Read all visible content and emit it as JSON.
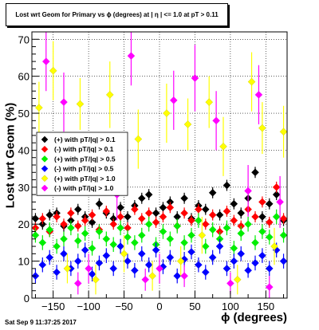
{
  "header": {
    "title": "Lost wrt Geom for Primary vs ϕ (degrees) at | η | <= 1.0 at pT > 0.11"
  },
  "footer": {
    "timestamp": "Sat Sep  9 11:37:25 2017"
  },
  "chart_data": {
    "type": "scatter",
    "xlabel": "ϕ (degrees)",
    "ylabel": "Lost wrt Geom (%)",
    "xlim": [
      -180,
      180
    ],
    "ylim": [
      0,
      72
    ],
    "x_ticks": [
      -150,
      -100,
      -50,
      0,
      50,
      100,
      150
    ],
    "y_ticks": [
      0,
      10,
      20,
      30,
      40,
      50,
      60,
      70
    ],
    "grid": true,
    "legend_position": "left-middle",
    "series": [
      {
        "name": "(+) with pT/|q| > 0.1",
        "color": "#000000",
        "points": [
          [
            -175,
            21.5,
            1.5
          ],
          [
            -165,
            20,
            1.5
          ],
          [
            -155,
            22.5,
            1.5
          ],
          [
            -145,
            23,
            1.5
          ],
          [
            -135,
            19.5,
            1.5
          ],
          [
            -125,
            21,
            1.5
          ],
          [
            -115,
            24,
            1.5
          ],
          [
            -105,
            22,
            1.5
          ],
          [
            -95,
            20.5,
            1.5
          ],
          [
            -85,
            25.5,
            1.5
          ],
          [
            -75,
            23,
            1.5
          ],
          [
            -65,
            21.5,
            1.5
          ],
          [
            -55,
            24.5,
            1.5
          ],
          [
            -45,
            22,
            1.5
          ],
          [
            -35,
            25,
            1.5
          ],
          [
            -25,
            27,
            1.5
          ],
          [
            -15,
            28,
            1.5
          ],
          [
            -5,
            23,
            1.5
          ],
          [
            5,
            24.5,
            1.5
          ],
          [
            15,
            26,
            1.5
          ],
          [
            25,
            22,
            1.5
          ],
          [
            35,
            27,
            1.5
          ],
          [
            45,
            21.5,
            1.5
          ],
          [
            55,
            25,
            1.5
          ],
          [
            65,
            24,
            1.5
          ],
          [
            75,
            28.5,
            1.5
          ],
          [
            85,
            22.5,
            1.5
          ],
          [
            95,
            30.5,
            1.5
          ],
          [
            105,
            25.5,
            1.5
          ],
          [
            115,
            23,
            1.5
          ],
          [
            125,
            27,
            1.5
          ],
          [
            135,
            34,
            1.5
          ],
          [
            145,
            22,
            1.5
          ],
          [
            155,
            25.5,
            1.5
          ],
          [
            165,
            28,
            1.5
          ],
          [
            175,
            21,
            1.5
          ]
        ]
      },
      {
        "name": "(-) with pT/|q| > 0.1",
        "color": "#ff0000",
        "points": [
          [
            -175,
            19,
            1.5
          ],
          [
            -165,
            21.5,
            1.5
          ],
          [
            -155,
            18,
            1.5
          ],
          [
            -145,
            22,
            1.5
          ],
          [
            -135,
            20,
            1.5
          ],
          [
            -125,
            23,
            1.5
          ],
          [
            -115,
            19.5,
            1.5
          ],
          [
            -105,
            21,
            1.5
          ],
          [
            -95,
            22.5,
            1.5
          ],
          [
            -85,
            18.5,
            1.5
          ],
          [
            -75,
            23.5,
            1.5
          ],
          [
            -65,
            20,
            1.5
          ],
          [
            -55,
            22,
            1.5
          ],
          [
            -45,
            19,
            1.5
          ],
          [
            -35,
            24,
            1.5
          ],
          [
            -25,
            21.5,
            1.5
          ],
          [
            -15,
            23,
            1.5
          ],
          [
            -5,
            20.5,
            1.5
          ],
          [
            5,
            22,
            1.5
          ],
          [
            15,
            24.5,
            1.5
          ],
          [
            25,
            19.5,
            1.5
          ],
          [
            35,
            23,
            1.5
          ],
          [
            45,
            21,
            1.5
          ],
          [
            55,
            24,
            1.5
          ],
          [
            65,
            20,
            1.5
          ],
          [
            75,
            22.5,
            1.5
          ],
          [
            85,
            18,
            1.5
          ],
          [
            95,
            23.5,
            1.5
          ],
          [
            105,
            21,
            1.5
          ],
          [
            115,
            19.5,
            1.5
          ],
          [
            125,
            24,
            1.5
          ],
          [
            135,
            22,
            1.5
          ],
          [
            145,
            26,
            1.5
          ],
          [
            155,
            20.5,
            1.5
          ],
          [
            165,
            30,
            1.5
          ],
          [
            175,
            21.5,
            1.5
          ]
        ]
      },
      {
        "name": "(+) with pT/|q| > 0.5",
        "color": "#00ee00",
        "points": [
          [
            -175,
            17,
            2
          ],
          [
            -165,
            15,
            2
          ],
          [
            -155,
            18.5,
            2
          ],
          [
            -145,
            14,
            2
          ],
          [
            -135,
            16,
            2
          ],
          [
            -125,
            19,
            2
          ],
          [
            -115,
            15.5,
            2
          ],
          [
            -105,
            17.5,
            2
          ],
          [
            -95,
            13.5,
            2
          ],
          [
            -85,
            18,
            2
          ],
          [
            -75,
            16,
            2
          ],
          [
            -65,
            14.5,
            2
          ],
          [
            -55,
            19,
            2
          ],
          [
            -45,
            16.5,
            2
          ],
          [
            -35,
            15,
            2
          ],
          [
            -25,
            17,
            2
          ],
          [
            -15,
            20,
            2
          ],
          [
            -5,
            14.5,
            2
          ],
          [
            5,
            18,
            2
          ],
          [
            15,
            16,
            2
          ],
          [
            25,
            19.5,
            2
          ],
          [
            35,
            15,
            2
          ],
          [
            45,
            17,
            2
          ],
          [
            55,
            21,
            2
          ],
          [
            65,
            14,
            2
          ],
          [
            75,
            18.5,
            2
          ],
          [
            85,
            16,
            2
          ],
          [
            95,
            19,
            2
          ],
          [
            105,
            13.5,
            2
          ],
          [
            115,
            17.5,
            2
          ],
          [
            125,
            20,
            2
          ],
          [
            135,
            15,
            2
          ],
          [
            145,
            18,
            2
          ],
          [
            155,
            16.5,
            2
          ],
          [
            165,
            22,
            2
          ],
          [
            175,
            17,
            2
          ]
        ]
      },
      {
        "name": "(-) with pT/|q| > 0.5",
        "color": "#0000ff",
        "points": [
          [
            -175,
            6,
            2
          ],
          [
            -165,
            9,
            2
          ],
          [
            -155,
            11,
            2
          ],
          [
            -145,
            7,
            2
          ],
          [
            -135,
            12,
            2
          ],
          [
            -125,
            8,
            2
          ],
          [
            -115,
            10,
            2
          ],
          [
            -105,
            13,
            2
          ],
          [
            -95,
            6.5,
            2
          ],
          [
            -85,
            9.5,
            2
          ],
          [
            -75,
            11.5,
            2
          ],
          [
            -65,
            8,
            2
          ],
          [
            -55,
            14,
            2
          ],
          [
            -45,
            10,
            2
          ],
          [
            -35,
            7.5,
            2
          ],
          [
            -25,
            12,
            2
          ],
          [
            -15,
            9,
            2
          ],
          [
            -5,
            13,
            2
          ],
          [
            5,
            8.5,
            2
          ],
          [
            15,
            11,
            2
          ],
          [
            25,
            6,
            2
          ],
          [
            35,
            10.5,
            2
          ],
          [
            45,
            12.5,
            2
          ],
          [
            55,
            9,
            2
          ],
          [
            65,
            7,
            2
          ],
          [
            75,
            11,
            2
          ],
          [
            85,
            14,
            2
          ],
          [
            95,
            8,
            2
          ],
          [
            105,
            10,
            2
          ],
          [
            115,
            12,
            2
          ],
          [
            125,
            7.5,
            2
          ],
          [
            135,
            9.5,
            2
          ],
          [
            145,
            11.5,
            2
          ],
          [
            155,
            8,
            2
          ],
          [
            165,
            13,
            2
          ],
          [
            175,
            10,
            2
          ]
        ]
      },
      {
        "name": "(+) with pT/|q| > 1.0",
        "color": "#ffff00",
        "points": [
          [
            -170,
            51.5,
            7
          ],
          [
            -150,
            61.5,
            8
          ],
          [
            -130,
            8,
            4
          ],
          [
            -112,
            52.5,
            7
          ],
          [
            -90,
            5,
            4
          ],
          [
            -70,
            55,
            9
          ],
          [
            -50,
            12,
            5
          ],
          [
            -30,
            43,
            8
          ],
          [
            -10,
            6,
            4
          ],
          [
            10,
            50,
            8
          ],
          [
            30,
            10,
            4
          ],
          [
            40,
            47,
            7
          ],
          [
            60,
            17,
            5
          ],
          [
            70,
            53,
            7
          ],
          [
            90,
            41,
            8
          ],
          [
            110,
            5,
            4
          ],
          [
            130,
            58.5,
            8
          ],
          [
            145,
            46,
            7
          ],
          [
            162,
            14,
            5
          ],
          [
            175,
            45,
            7
          ]
        ]
      },
      {
        "name": "(-) with pT/|q| > 1.0",
        "color": "#ff00ff",
        "points": [
          [
            -160,
            64,
            8
          ],
          [
            -135,
            53,
            8
          ],
          [
            -115,
            4,
            3
          ],
          [
            -100,
            8,
            4
          ],
          [
            -85,
            36,
            8
          ],
          [
            -60,
            28,
            7
          ],
          [
            -40,
            65.5,
            8
          ],
          [
            -20,
            5,
            3
          ],
          [
            0,
            8,
            4
          ],
          [
            20,
            53.5,
            8
          ],
          [
            35,
            6,
            3
          ],
          [
            50,
            59.5,
            9
          ],
          [
            80,
            48,
            8
          ],
          [
            100,
            4,
            3
          ],
          [
            125,
            29,
            7
          ],
          [
            140,
            55,
            8
          ],
          [
            155,
            3,
            3
          ],
          [
            170,
            26,
            7
          ]
        ]
      }
    ]
  }
}
